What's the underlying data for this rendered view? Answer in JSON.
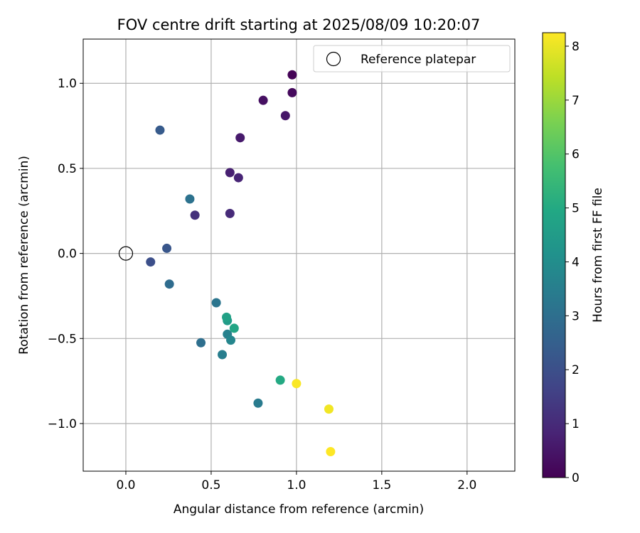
{
  "chart_data": {
    "type": "scatter",
    "title": "FOV centre drift starting at 2025/08/09 10:20:07",
    "xlabel": "Angular distance from reference (arcmin)",
    "ylabel": "Rotation from reference (arcmin)",
    "xlim": [
      -0.25,
      2.28
    ],
    "ylim": [
      -1.28,
      1.26
    ],
    "xticks": [
      0.0,
      0.5,
      1.0,
      1.5,
      2.0
    ],
    "xtick_labels": [
      "0.0",
      "0.5",
      "1.0",
      "1.5",
      "2.0"
    ],
    "yticks": [
      -1.0,
      -0.5,
      0.0,
      0.5,
      1.0
    ],
    "ytick_labels": [
      "−1.0",
      "−0.5",
      "0.0",
      "0.5",
      "1.0"
    ],
    "grid": true,
    "legend": {
      "placement": "top-right",
      "entries": [
        {
          "label": "Reference platepar",
          "marker": "open-circle"
        }
      ]
    },
    "reference_point": {
      "x": 0.0,
      "y": 0.0
    },
    "colorbar": {
      "label": "Hours from first FF file",
      "range": [
        0,
        8.25
      ],
      "ticks": [
        0,
        1,
        2,
        3,
        4,
        5,
        6,
        7,
        8
      ],
      "tick_labels": [
        "0",
        "1",
        "2",
        "3",
        "4",
        "5",
        "6",
        "7",
        "8"
      ],
      "colormap": "viridis"
    },
    "points": [
      {
        "x": 0.975,
        "y": 1.05,
        "hours": 0.05
      },
      {
        "x": 0.975,
        "y": 0.945,
        "hours": 0.2
      },
      {
        "x": 0.805,
        "y": 0.9,
        "hours": 0.35
      },
      {
        "x": 0.935,
        "y": 0.81,
        "hours": 0.5
      },
      {
        "x": 0.67,
        "y": 0.68,
        "hours": 0.6
      },
      {
        "x": 0.61,
        "y": 0.475,
        "hours": 0.75
      },
      {
        "x": 0.66,
        "y": 0.445,
        "hours": 0.85
      },
      {
        "x": 0.61,
        "y": 0.235,
        "hours": 1.0
      },
      {
        "x": 0.405,
        "y": 0.225,
        "hours": 1.15
      },
      {
        "x": 0.145,
        "y": -0.05,
        "hours": 2.0
      },
      {
        "x": 0.24,
        "y": 0.03,
        "hours": 2.2
      },
      {
        "x": 0.2,
        "y": 0.725,
        "hours": 2.35
      },
      {
        "x": 0.255,
        "y": -0.18,
        "hours": 2.9
      },
      {
        "x": 0.44,
        "y": -0.525,
        "hours": 3.0
      },
      {
        "x": 0.375,
        "y": 0.32,
        "hours": 3.1
      },
      {
        "x": 0.53,
        "y": -0.29,
        "hours": 3.2
      },
      {
        "x": 0.775,
        "y": -0.88,
        "hours": 3.4
      },
      {
        "x": 0.565,
        "y": -0.595,
        "hours": 3.5
      },
      {
        "x": 0.595,
        "y": -0.475,
        "hours": 3.6
      },
      {
        "x": 0.615,
        "y": -0.51,
        "hours": 3.75
      },
      {
        "x": 0.595,
        "y": -0.395,
        "hours": 4.5
      },
      {
        "x": 0.59,
        "y": -0.375,
        "hours": 4.7
      },
      {
        "x": 0.635,
        "y": -0.44,
        "hours": 4.85
      },
      {
        "x": 0.905,
        "y": -0.745,
        "hours": 5.0
      },
      {
        "x": 1.0,
        "y": -0.765,
        "hours": 8.2
      },
      {
        "x": 1.19,
        "y": -0.915,
        "hours": 8.1
      },
      {
        "x": 1.2,
        "y": -1.165,
        "hours": 8.25
      }
    ]
  }
}
